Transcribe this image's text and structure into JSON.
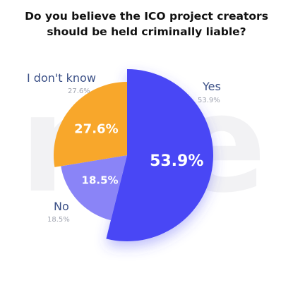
{
  "chart_data": {
    "type": "pie",
    "title": "Do you believe the ICO project creators should be held criminally liable?",
    "title_lines": [
      "Do you believe the ICO project creators",
      "should be held criminally liable?"
    ],
    "slices": [
      {
        "label": "Yes",
        "value": 53.9,
        "display": "53.9%",
        "color": "#4a47f5"
      },
      {
        "label": "No",
        "value": 18.5,
        "display": "18.5%",
        "color": "#8a84f7"
      },
      {
        "label": "I don't know",
        "value": 27.6,
        "display": "27.6%",
        "color": "#f8a72b"
      }
    ],
    "legend": "around-pie"
  },
  "watermark": "nle",
  "colors": {
    "label_text": "#3a4f86",
    "pct_text": "#a0a4b0"
  }
}
